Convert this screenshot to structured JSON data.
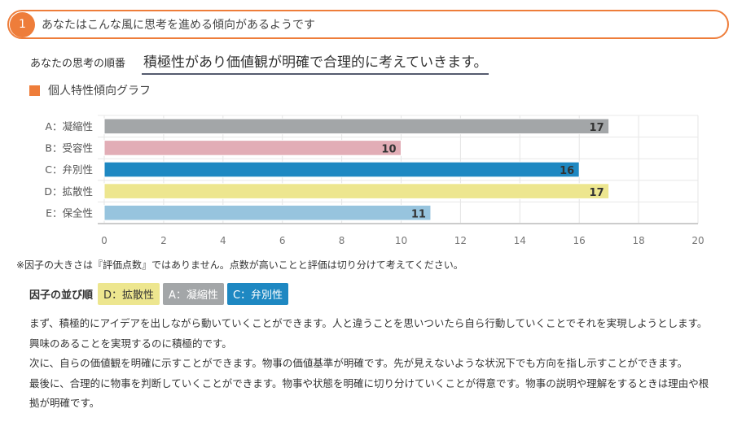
{
  "header": {
    "number": "1",
    "title": "あなたはこんな風に思考を進める傾向があるようです"
  },
  "thinking_order": {
    "label": "あなたの思考の順番",
    "value": "積極性があり価値観が明確で合理的に考えていきます。"
  },
  "graph_title": "個人特性傾向グラフ",
  "colors": {
    "accent": "#ee7d3a"
  },
  "chart_data": {
    "type": "bar",
    "orientation": "horizontal",
    "categories": [
      "A：凝縮性",
      "B：受容性",
      "C：弁別性",
      "D：拡散性",
      "E：保全性"
    ],
    "values": [
      17,
      10,
      16,
      17,
      11
    ],
    "colors": [
      "#a3a6a8",
      "#e2adb6",
      "#1e88c2",
      "#ede68f",
      "#97c4de"
    ],
    "xlim": [
      0,
      20
    ],
    "xticks": [
      "0",
      "2",
      "4",
      "6",
      "8",
      "10",
      "12",
      "14",
      "16",
      "18",
      "20"
    ],
    "grid": true,
    "legend": "none"
  },
  "note": "※因子の大きさは『評価点数』ではありません。点数が高いことと評価は切り分けて考えてください。",
  "factor_order": {
    "label": "因子の並び順",
    "chips": [
      {
        "text": "D：拡散性",
        "bg": "#ede68f",
        "fg": "#333"
      },
      {
        "text": "A：凝縮性",
        "bg": "#a3a6a8",
        "fg": "#fff"
      },
      {
        "text": "C：弁別性",
        "bg": "#1e88c2",
        "fg": "#fff"
      }
    ]
  },
  "paragraphs": [
    "まず、積極的にアイデアを出しながら動いていくことができます。人と違うことを思いついたら自ら行動していくことでそれを実現しようとします。興味のあることを実現するのに積極的です。",
    "次に、自らの価値観を明確に示すことができます。物事の価値基準が明確です。先が見えないような状況下でも方向を指し示すことができます。",
    "最後に、合理的に物事を判断していくことができます。物事や状態を明確に切り分けていくことが得意です。物事の説明や理解をするときは理由や根拠が明確です。"
  ]
}
